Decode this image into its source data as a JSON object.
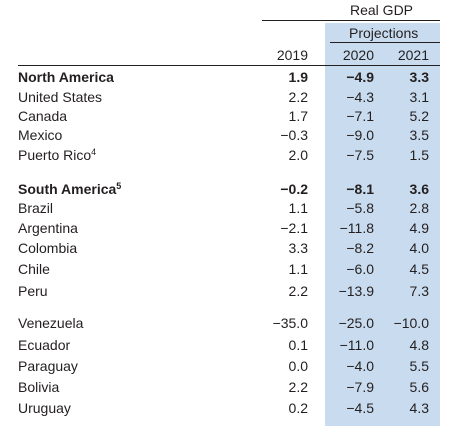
{
  "header": {
    "group_title": "Real GDP",
    "subgroup_title": "Projections",
    "years": [
      "2019",
      "2020",
      "2021"
    ]
  },
  "colors": {
    "projection_shade": "#c9dcef",
    "text": "#231f20"
  },
  "rows": [
    {
      "label": "North America",
      "sup": "",
      "bold": true,
      "values": [
        "1.9",
        "−4.9",
        "3.3"
      ]
    },
    {
      "label": "United States",
      "sup": "",
      "bold": false,
      "values": [
        "2.2",
        "−4.3",
        "3.1"
      ]
    },
    {
      "label": "Canada",
      "sup": "",
      "bold": false,
      "values": [
        "1.7",
        "−7.1",
        "5.2"
      ]
    },
    {
      "label": "Mexico",
      "sup": "",
      "bold": false,
      "values": [
        "−0.3",
        "−9.0",
        "3.5"
      ]
    },
    {
      "label": "Puerto Rico",
      "sup": "4",
      "bold": false,
      "values": [
        "2.0",
        "−7.5",
        "1.5"
      ]
    },
    {
      "label": "South America",
      "sup": "5",
      "bold": true,
      "values": [
        "−0.2",
        "−8.1",
        "3.6"
      ]
    },
    {
      "label": "Brazil",
      "sup": "",
      "bold": false,
      "values": [
        "1.1",
        "−5.8",
        "2.8"
      ]
    },
    {
      "label": "Argentina",
      "sup": "",
      "bold": false,
      "values": [
        "−2.1",
        "−11.8",
        "4.9"
      ]
    },
    {
      "label": "Colombia",
      "sup": "",
      "bold": false,
      "values": [
        "3.3",
        "−8.2",
        "4.0"
      ]
    },
    {
      "label": "Chile",
      "sup": "",
      "bold": false,
      "values": [
        "1.1",
        "−6.0",
        "4.5"
      ]
    },
    {
      "label": "Peru",
      "sup": "",
      "bold": false,
      "values": [
        "2.2",
        "−13.9",
        "7.3"
      ]
    },
    {
      "label": "Venezuela",
      "sup": "",
      "bold": false,
      "values": [
        "−35.0",
        "−25.0",
        "−10.0"
      ]
    },
    {
      "label": "Ecuador",
      "sup": "",
      "bold": false,
      "values": [
        "0.1",
        "−11.0",
        "4.8"
      ]
    },
    {
      "label": "Paraguay",
      "sup": "",
      "bold": false,
      "values": [
        "0.0",
        "−4.0",
        "5.5"
      ]
    },
    {
      "label": "Bolivia",
      "sup": "",
      "bold": false,
      "values": [
        "2.2",
        "−7.9",
        "5.6"
      ]
    },
    {
      "label": "Uruguay",
      "sup": "",
      "bold": false,
      "values": [
        "0.2",
        "−4.5",
        "4.3"
      ]
    }
  ]
}
